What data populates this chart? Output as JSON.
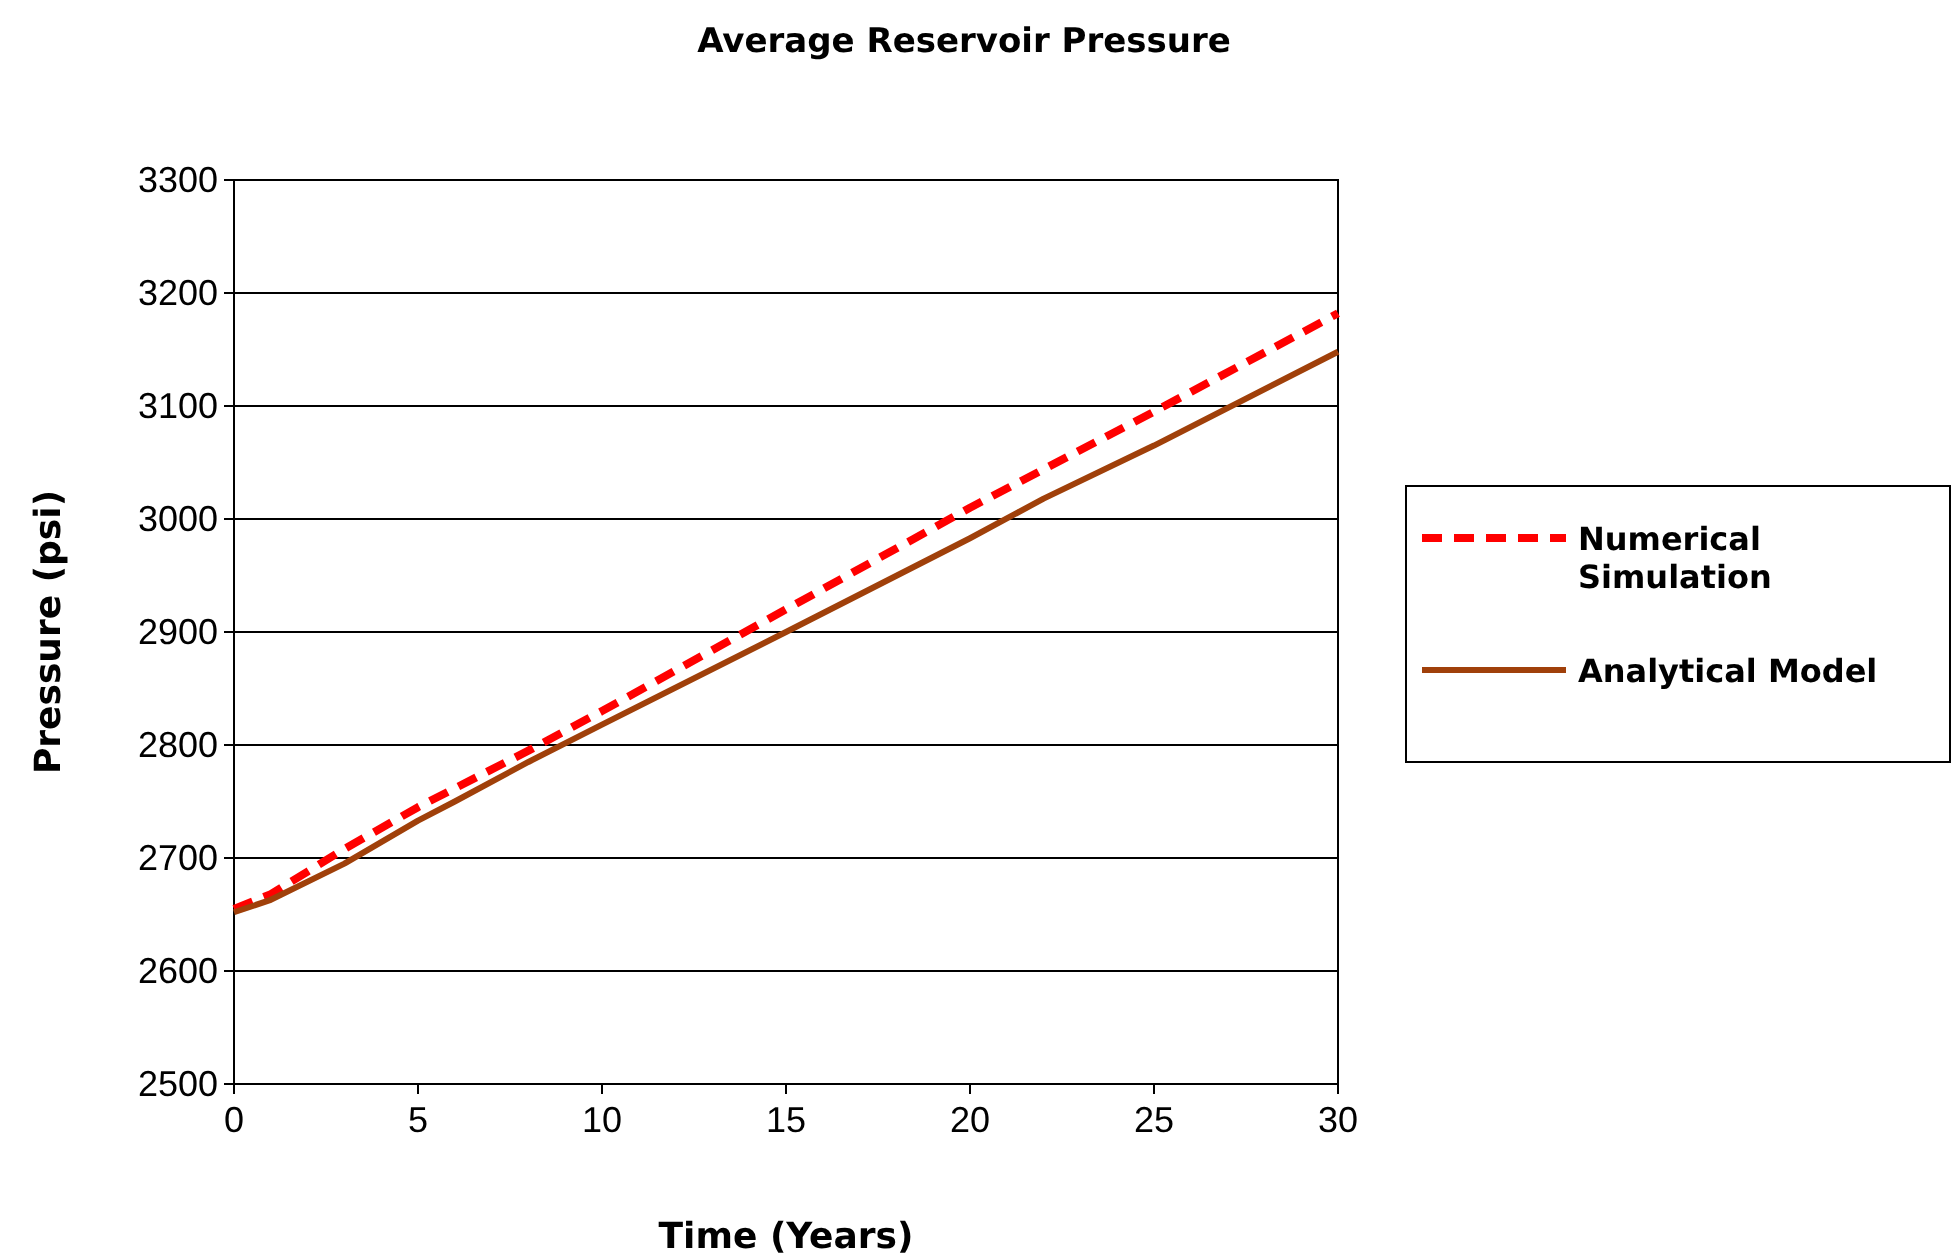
{
  "chart_data": {
    "type": "line",
    "title": "Average Reservoir Pressure",
    "xlabel": "Time (Years)",
    "ylabel": "Pressure (psi)",
    "xlim": [
      0,
      30
    ],
    "xticks": [
      0,
      5,
      10,
      15,
      20,
      25,
      30
    ],
    "ylim": [
      2500,
      3300
    ],
    "yticks": [
      2500,
      2600,
      2700,
      2800,
      2900,
      3000,
      3100,
      3200,
      3300
    ],
    "grid": "y",
    "legend": "right",
    "marker": "none",
    "series": [
      {
        "name": "Numerical Simulation",
        "color": "#ff0000",
        "line_style": "dashed",
        "x": [
          0,
          1,
          2,
          3,
          5,
          8,
          10,
          15,
          20,
          25,
          30
        ],
        "values": [
          2655,
          2668,
          2688,
          2708,
          2745,
          2795,
          2830,
          2920,
          3010,
          3095,
          3182
        ]
      },
      {
        "name": "Analytical Model",
        "color": "#a0400a",
        "line_style": "solid",
        "x": [
          0,
          1,
          3,
          5,
          6,
          8,
          10,
          15,
          20,
          22,
          25,
          30
        ],
        "values": [
          2652,
          2663,
          2695,
          2733,
          2750,
          2785,
          2818,
          2900,
          2983,
          3018,
          3065,
          3148
        ]
      }
    ]
  }
}
